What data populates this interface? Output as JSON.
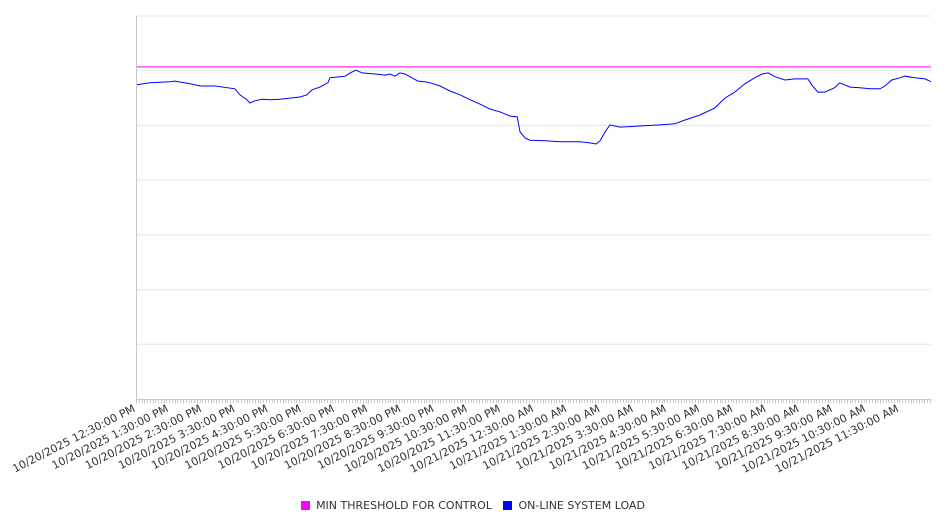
{
  "chart_data": {
    "type": "line",
    "title": "",
    "xlabel": "",
    "ylabel": "",
    "xlim": [
      0,
      23.95
    ],
    "ylim": [
      0,
      7
    ],
    "x_units": "hours since 10/20/2025 12:30:00 PM",
    "grid": true,
    "legend_position": "bottom",
    "tick_labels": [
      "10/20/2025 12:30:00 PM",
      "10/20/2025 1:30:00 PM",
      "10/20/2025 2:30:00 PM",
      "10/20/2025 3:30:00 PM",
      "10/20/2025 4:30:00 PM",
      "10/20/2025 5:30:00 PM",
      "10/20/2025 6:30:00 PM",
      "10/20/2025 7:30:00 PM",
      "10/20/2025 8:30:00 PM",
      "10/20/2025 9:30:00 PM",
      "10/20/2025 10:30:00 PM",
      "10/20/2025 11:30:00 PM",
      "10/21/2025 12:30:00 AM",
      "10/21/2025 1:30:00 AM",
      "10/21/2025 2:30:00 AM",
      "10/21/2025 3:30:00 AM",
      "10/21/2025 4:30:00 AM",
      "10/21/2025 5:30:00 AM",
      "10/21/2025 6:30:00 AM",
      "10/21/2025 7:30:00 AM",
      "10/21/2025 8:30:00 AM",
      "10/21/2025 9:30:00 AM",
      "10/21/2025 10:30:00 AM",
      "10/21/2025 11:30:00 AM"
    ],
    "series": [
      {
        "name": "MIN THRESHOLD FOR CONTROL",
        "color": "#ff00ff",
        "points": [
          [
            0,
            6.07
          ],
          [
            23.95,
            6.07
          ]
        ]
      },
      {
        "name": "ON-LINE SYSTEM LOAD",
        "color": "#0000ff",
        "points": [
          [
            0,
            5.74
          ],
          [
            0.42,
            5.78
          ],
          [
            1.02,
            5.8
          ],
          [
            1.17,
            5.81
          ],
          [
            1.63,
            5.76
          ],
          [
            1.93,
            5.72
          ],
          [
            2.38,
            5.72
          ],
          [
            2.98,
            5.67
          ],
          [
            3.13,
            5.56
          ],
          [
            3.34,
            5.47
          ],
          [
            3.43,
            5.41
          ],
          [
            3.58,
            5.45
          ],
          [
            3.8,
            5.48
          ],
          [
            4.04,
            5.47
          ],
          [
            4.34,
            5.48
          ],
          [
            4.64,
            5.5
          ],
          [
            4.94,
            5.52
          ],
          [
            5.15,
            5.56
          ],
          [
            5.3,
            5.65
          ],
          [
            5.54,
            5.7
          ],
          [
            5.78,
            5.78
          ],
          [
            5.84,
            5.87
          ],
          [
            6.14,
            5.89
          ],
          [
            6.3,
            5.9
          ],
          [
            6.45,
            5.96
          ],
          [
            6.63,
            6.01
          ],
          [
            6.81,
            5.96
          ],
          [
            7.2,
            5.94
          ],
          [
            7.5,
            5.92
          ],
          [
            7.65,
            5.94
          ],
          [
            7.8,
            5.9
          ],
          [
            7.95,
            5.96
          ],
          [
            8.1,
            5.94
          ],
          [
            8.25,
            5.89
          ],
          [
            8.49,
            5.81
          ],
          [
            8.7,
            5.8
          ],
          [
            8.86,
            5.78
          ],
          [
            9.16,
            5.72
          ],
          [
            9.46,
            5.63
          ],
          [
            9.76,
            5.56
          ],
          [
            10.06,
            5.47
          ],
          [
            10.36,
            5.39
          ],
          [
            10.66,
            5.3
          ],
          [
            10.96,
            5.25
          ],
          [
            11.27,
            5.17
          ],
          [
            11.48,
            5.16
          ],
          [
            11.57,
            4.88
          ],
          [
            11.72,
            4.77
          ],
          [
            11.87,
            4.73
          ],
          [
            12.32,
            4.72
          ],
          [
            12.77,
            4.7
          ],
          [
            13.37,
            4.7
          ],
          [
            13.67,
            4.68
          ],
          [
            13.86,
            4.66
          ],
          [
            13.98,
            4.72
          ],
          [
            14.13,
            4.88
          ],
          [
            14.28,
            5.01
          ],
          [
            14.58,
            4.97
          ],
          [
            15.18,
            4.99
          ],
          [
            15.78,
            5.01
          ],
          [
            16.23,
            5.03
          ],
          [
            16.54,
            5.1
          ],
          [
            16.99,
            5.19
          ],
          [
            17.44,
            5.32
          ],
          [
            17.59,
            5.41
          ],
          [
            17.74,
            5.5
          ],
          [
            18.04,
            5.61
          ],
          [
            18.34,
            5.76
          ],
          [
            18.64,
            5.87
          ],
          [
            18.86,
            5.94
          ],
          [
            19.04,
            5.96
          ],
          [
            19.25,
            5.89
          ],
          [
            19.55,
            5.83
          ],
          [
            19.85,
            5.85
          ],
          [
            20.24,
            5.85
          ],
          [
            20.36,
            5.74
          ],
          [
            20.54,
            5.61
          ],
          [
            20.75,
            5.61
          ],
          [
            21.05,
            5.69
          ],
          [
            21.2,
            5.78
          ],
          [
            21.51,
            5.7
          ],
          [
            21.81,
            5.69
          ],
          [
            22.11,
            5.67
          ],
          [
            22.41,
            5.67
          ],
          [
            22.56,
            5.72
          ],
          [
            22.77,
            5.83
          ],
          [
            23.01,
            5.87
          ],
          [
            23.16,
            5.9
          ],
          [
            23.46,
            5.87
          ],
          [
            23.77,
            5.85
          ],
          [
            23.95,
            5.8
          ]
        ]
      }
    ]
  }
}
